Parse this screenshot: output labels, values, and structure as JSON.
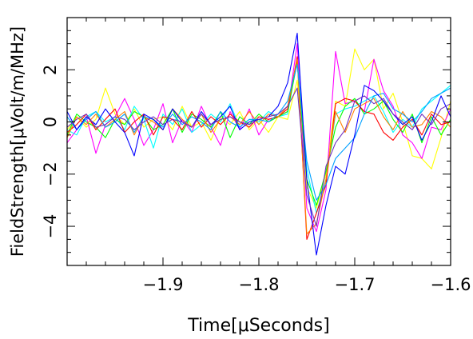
{
  "chart_data": {
    "type": "line",
    "xlabel": "Time[μSeconds]",
    "ylabel": "FieldStrength[μVolt/m/MHz]",
    "xlim": [
      -2.0,
      -1.6
    ],
    "ylim": [
      -5.5,
      4.0
    ],
    "x_ticks": [
      -1.9,
      -1.8,
      -1.7,
      -1.6
    ],
    "y_ticks": [
      -4,
      -2,
      0,
      2
    ],
    "x_tick_labels": [
      "−1.9",
      "−1.8",
      "−1.7",
      "−1.6"
    ],
    "y_tick_labels": [
      "−4",
      "−2",
      "0",
      "2"
    ],
    "grid": false,
    "legend": "none",
    "x": [
      -2.0,
      -1.99,
      -1.98,
      -1.97,
      -1.96,
      -1.95,
      -1.94,
      -1.93,
      -1.92,
      -1.91,
      -1.9,
      -1.89,
      -1.88,
      -1.87,
      -1.86,
      -1.85,
      -1.84,
      -1.83,
      -1.82,
      -1.81,
      -1.8,
      -1.79,
      -1.78,
      -1.77,
      -1.76,
      -1.75,
      -1.74,
      -1.73,
      -1.72,
      -1.71,
      -1.7,
      -1.69,
      -1.68,
      -1.67,
      -1.66,
      -1.65,
      -1.64,
      -1.63,
      -1.62,
      -1.61,
      -1.6
    ],
    "series": [
      {
        "color": "#ffff00",
        "values": [
          -0.3,
          0.2,
          -0.2,
          0.1,
          1.3,
          0.3,
          -0.1,
          0.5,
          -0.2,
          0.1,
          0.2,
          -0.3,
          0.6,
          -0.2,
          0.0,
          -0.7,
          0.2,
          -0.1,
          0.4,
          -0.3,
          0.1,
          -0.4,
          0.2,
          0.1,
          1.6,
          -2.5,
          -3.3,
          -2.0,
          0.8,
          0.6,
          2.8,
          2.0,
          2.4,
          0.5,
          1.1,
          0.0,
          -1.3,
          -1.4,
          -1.8,
          -0.6,
          0.8
        ]
      },
      {
        "color": "#ff00ff",
        "values": [
          -0.8,
          -0.3,
          0.2,
          -1.2,
          -0.1,
          0.2,
          0.9,
          0.1,
          -0.9,
          -0.3,
          0.7,
          -0.8,
          0.1,
          -0.4,
          0.6,
          -0.2,
          -0.9,
          0.4,
          -0.3,
          0.5,
          -0.5,
          0.1,
          0.2,
          0.4,
          3.0,
          -3.3,
          -4.2,
          -2.6,
          2.7,
          0.7,
          0.8,
          0.4,
          2.4,
          1.2,
          0.6,
          -0.5,
          -0.8,
          -1.4,
          -0.2,
          -0.3,
          0.5
        ]
      },
      {
        "color": "#00ffff",
        "values": [
          -0.3,
          -0.5,
          0.2,
          0.4,
          0.0,
          0.2,
          -0.3,
          0.6,
          0.1,
          -1.0,
          0.3,
          -0.1,
          0.5,
          -0.4,
          -0.1,
          0.3,
          0.0,
          0.7,
          -0.2,
          0.1,
          0.0,
          0.4,
          0.2,
          0.3,
          2.4,
          -1.8,
          -3.5,
          -2.2,
          0.3,
          0.5,
          0.6,
          0.8,
          1.0,
          0.4,
          -0.4,
          0.1,
          -0.2,
          0.5,
          0.8,
          1.1,
          1.4
        ]
      },
      {
        "color": "#00ff00",
        "values": [
          -0.5,
          0.3,
          0.0,
          -0.2,
          -0.6,
          0.1,
          -0.1,
          0.4,
          0.2,
          -0.3,
          -0.1,
          0.5,
          -0.4,
          0.3,
          0.1,
          -0.2,
          0.4,
          -0.6,
          0.2,
          -0.1,
          0.3,
          0.0,
          0.2,
          0.4,
          2.3,
          -2.2,
          -3.2,
          -1.9,
          -0.2,
          0.6,
          0.9,
          0.3,
          0.5,
          0.8,
          0.1,
          -0.4,
          0.3,
          -0.8,
          0.2,
          -0.5,
          0.1
        ]
      },
      {
        "color": "#ff0000",
        "values": [
          -0.4,
          -0.1,
          0.3,
          -0.3,
          0.1,
          0.5,
          -0.4,
          0.0,
          0.3,
          -0.5,
          0.2,
          0.1,
          -0.3,
          0.4,
          -0.2,
          0.2,
          -0.1,
          0.3,
          0.0,
          -0.2,
          0.2,
          0.1,
          0.2,
          0.5,
          2.5,
          -4.5,
          -3.5,
          -2.4,
          0.7,
          0.9,
          0.8,
          0.4,
          0.3,
          -0.4,
          -0.7,
          -0.2,
          0.1,
          -0.5,
          0.3,
          -0.1,
          0.0
        ]
      },
      {
        "color": "#ff8000",
        "values": [
          -0.6,
          0.2,
          -0.1,
          0.3,
          -0.2,
          0.1,
          0.4,
          -0.5,
          0.2,
          0.0,
          -0.3,
          0.5,
          0.1,
          -0.2,
          0.3,
          -0.4,
          0.1,
          0.2,
          -0.1,
          0.4,
          -0.1,
          0.3,
          0.2,
          0.6,
          2.4,
          -4.3,
          -3.9,
          -2.2,
          0.4,
          -0.4,
          0.5,
          0.7,
          0.9,
          0.2,
          -0.3,
          0.4,
          -0.2,
          -0.1,
          0.4,
          0.2,
          -0.2
        ]
      },
      {
        "color": "#00a0ff",
        "values": [
          0.2,
          -0.3,
          0.1,
          0.4,
          -0.2,
          0.0,
          0.3,
          -0.4,
          0.2,
          0.1,
          -0.2,
          0.3,
          -0.1,
          0.2,
          0.0,
          -0.3,
          0.4,
          0.0,
          -0.2,
          0.1,
          0.1,
          0.0,
          0.3,
          0.8,
          2.2,
          -1.5,
          -3.0,
          -2.4,
          -1.4,
          -1.0,
          -0.6,
          0.3,
          1.0,
          1.1,
          0.5,
          0.3,
          0.0,
          0.4,
          0.9,
          1.1,
          1.3
        ]
      },
      {
        "color": "#0000ff",
        "values": [
          0.4,
          -0.3,
          0.2,
          -0.1,
          0.5,
          0.0,
          -0.4,
          -1.3,
          0.3,
          0.1,
          -0.3,
          0.5,
          0.0,
          -0.2,
          0.4,
          -0.1,
          0.2,
          0.6,
          -0.3,
          0.0,
          0.1,
          0.2,
          0.6,
          1.5,
          3.4,
          -2.2,
          -5.1,
          -3.2,
          -1.7,
          -2.0,
          -0.5,
          1.4,
          1.2,
          0.8,
          0.3,
          -0.1,
          0.2,
          -0.7,
          0.0,
          1.0,
          0.2
        ]
      },
      {
        "color": "#7030c0",
        "values": [
          -0.2,
          0.1,
          0.3,
          -0.2,
          -0.1,
          0.2,
          0.1,
          -0.3,
          0.0,
          0.2,
          -0.1,
          0.1,
          0.0,
          -0.2,
          0.3,
          -0.1,
          0.1,
          0.2,
          0.0,
          -0.1,
          0.1,
          0.2,
          0.3,
          0.6,
          1.3,
          -2.8,
          -4.0,
          -1.7,
          -0.8,
          -0.3,
          0.8,
          1.0,
          0.7,
          0.9,
          0.3,
          0.0,
          -0.3,
          0.3,
          -0.1,
          0.5,
          0.7
        ]
      }
    ]
  }
}
